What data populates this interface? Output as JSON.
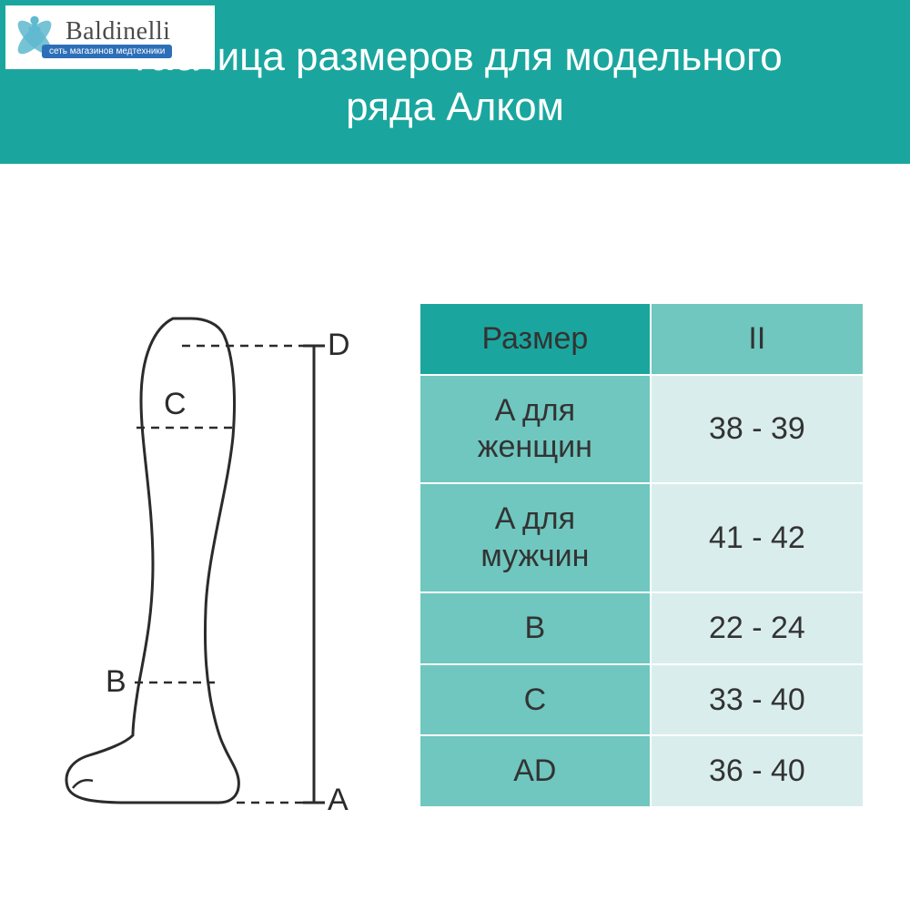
{
  "logo": {
    "brand": "Baldinelli",
    "tagline": "сеть магазинов медтехники",
    "mark_color": "#5fb9cf"
  },
  "banner": {
    "title_line1": "Таблица размеров для модельного",
    "title_line2": "ряда Алком",
    "background": "#1aa69e"
  },
  "diagram": {
    "stroke": "#2b2b2b",
    "stroke_width": 3,
    "font_size": 34,
    "labels": {
      "A": "A",
      "B": "B",
      "C": "C",
      "D": "D"
    }
  },
  "table": {
    "colors": {
      "header_label_bg": "#1aa69e",
      "header_value_bg": "#6fc7bf",
      "data_label_bg": "#6fc7bf",
      "data_value_bg": "#d9eeec",
      "border": "#ffffff",
      "text": "#333333"
    },
    "header": {
      "label": "Размер",
      "value": "II"
    },
    "rows": [
      {
        "label": "A для женщин",
        "value": "38 - 39"
      },
      {
        "label": "A для мужчин",
        "value": "41 - 42"
      },
      {
        "label": "B",
        "value": "22 - 24"
      },
      {
        "label": "C",
        "value": "33 - 40"
      },
      {
        "label": "AD",
        "value": "36 - 40"
      }
    ]
  }
}
